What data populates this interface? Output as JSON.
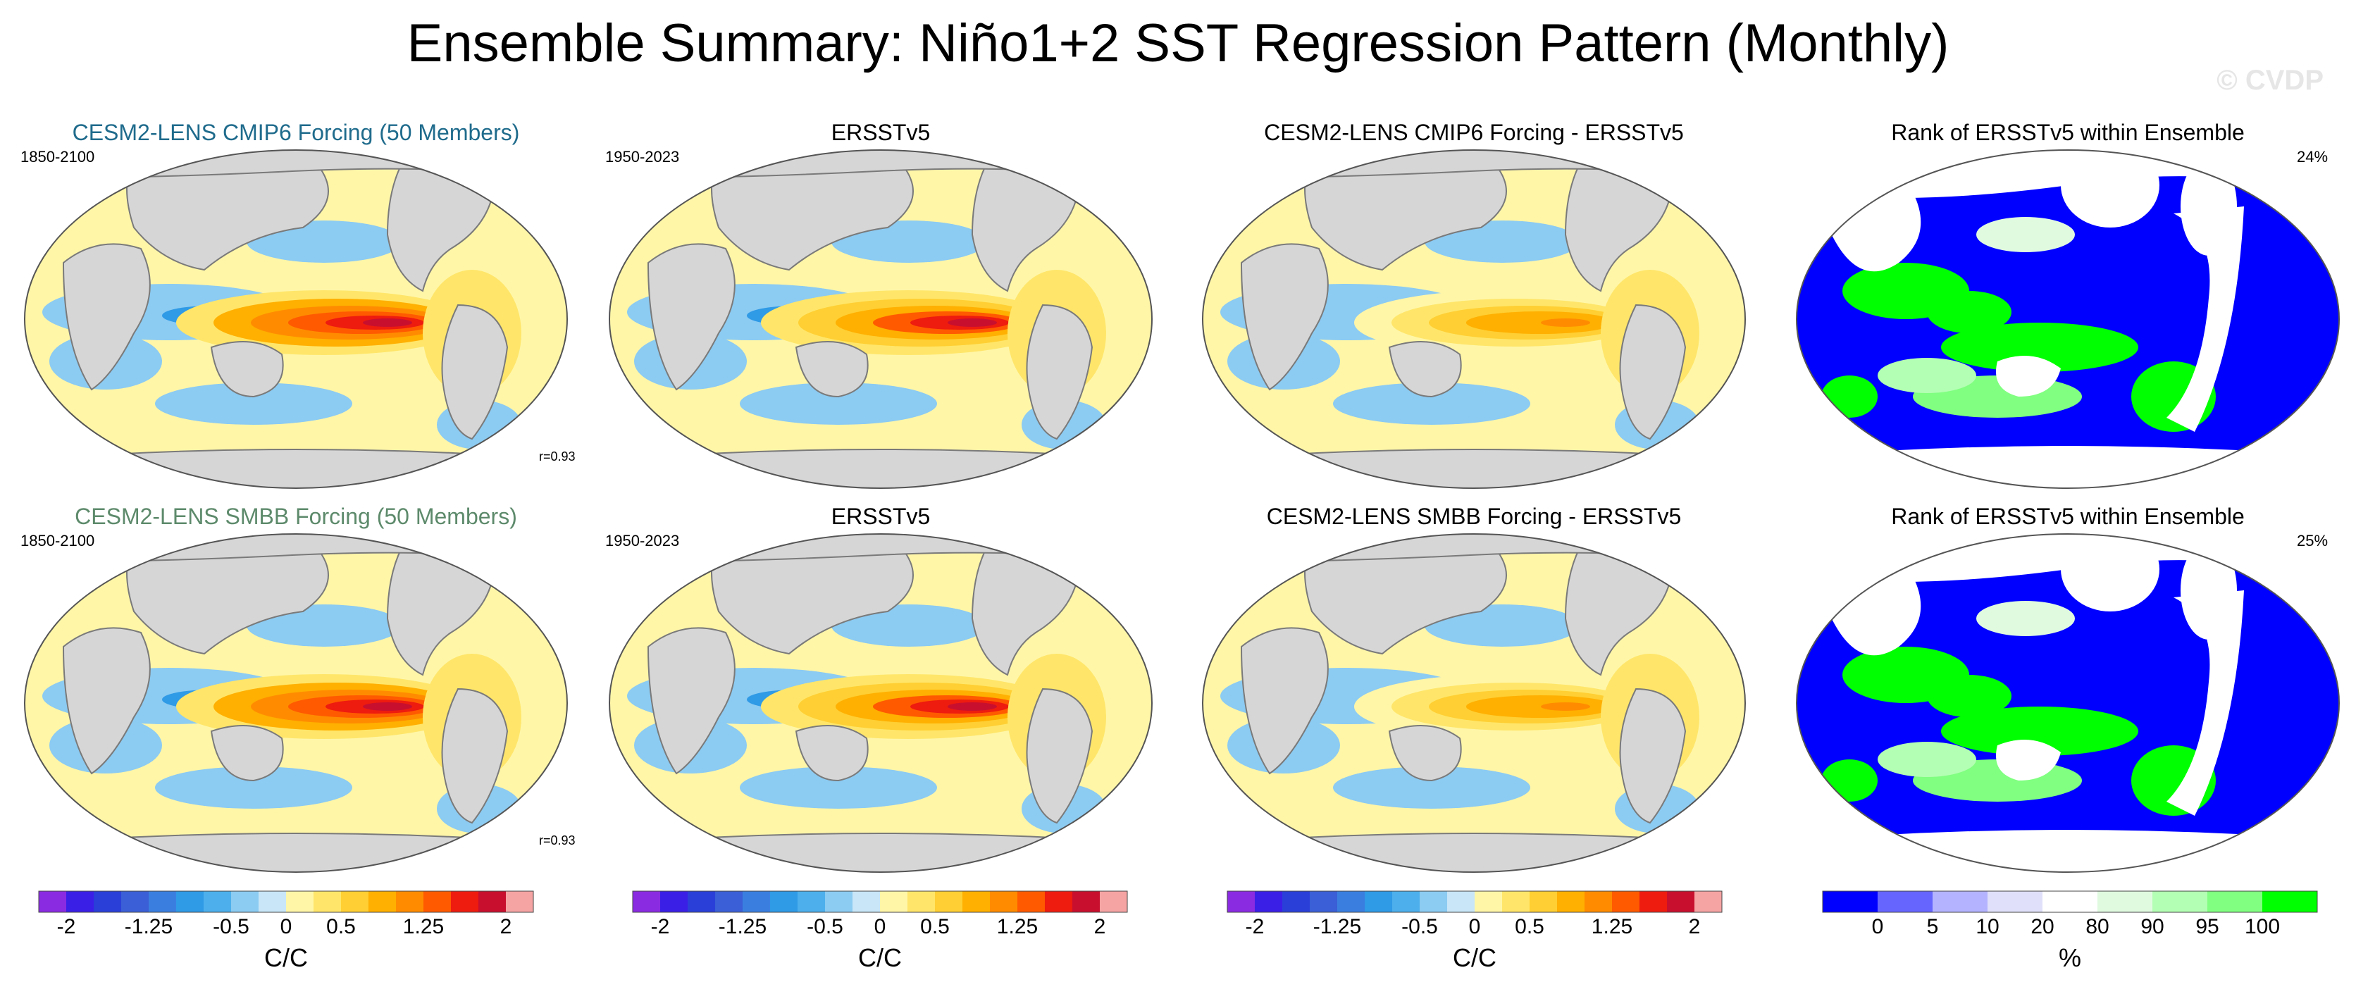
{
  "title": "Ensemble Summary: Niño1+2 SST Regression Pattern (Monthly)",
  "watermark": "© CVDP",
  "colors": {
    "title_cmip6": "#1f6b8c",
    "title_smbb": "#5d8a6b",
    "land": "#d6d6d6",
    "coast": "#7a7a7a"
  },
  "rows": [
    {
      "panels": [
        {
          "title": "CESM2-LENS CMIP6 Forcing (50 Members)",
          "left_label": "1850-2100",
          "right_label": "",
          "corner_stat": "r=0.93",
          "kind": "model"
        },
        {
          "title": "ERSSTv5",
          "left_label": "1950-2023",
          "right_label": "",
          "corner_stat": "",
          "kind": "obs"
        },
        {
          "title": "CESM2-LENS CMIP6 Forcing - ERSSTv5",
          "left_label": "",
          "right_label": "",
          "corner_stat": "",
          "kind": "diff"
        },
        {
          "title": "Rank of ERSSTv5 within Ensemble",
          "left_label": "",
          "right_label": "24%",
          "corner_stat": "",
          "kind": "rank"
        }
      ]
    },
    {
      "panels": [
        {
          "title": "CESM2-LENS SMBB Forcing (50 Members)",
          "left_label": "1850-2100",
          "right_label": "",
          "corner_stat": "r=0.93",
          "kind": "model"
        },
        {
          "title": "ERSSTv5",
          "left_label": "1950-2023",
          "right_label": "",
          "corner_stat": "",
          "kind": "obs"
        },
        {
          "title": "CESM2-LENS SMBB Forcing - ERSSTv5",
          "left_label": "",
          "right_label": "",
          "corner_stat": "",
          "kind": "diff"
        },
        {
          "title": "Rank of ERSSTv5 within Ensemble",
          "left_label": "",
          "right_label": "25%",
          "corner_stat": "",
          "kind": "rank"
        }
      ]
    }
  ],
  "chart_data": [
    {
      "type": "heatmap",
      "variable": "SST regression",
      "units": "C/C",
      "colorbar": {
        "levels": [
          -2,
          -1.75,
          -1.5,
          -1.25,
          -1,
          -0.75,
          -0.5,
          -0.25,
          0,
          0.25,
          0.5,
          0.75,
          1,
          1.25,
          1.5,
          1.75,
          2
        ],
        "tick_labels": [
          "-2",
          "-1.25",
          "-0.5",
          "0",
          "0.5",
          "1.25",
          "2"
        ],
        "tick_values": [
          -2,
          -1.25,
          -0.5,
          0,
          0.5,
          1.25,
          2
        ],
        "colors": [
          "#8a2be2",
          "#3a1fe6",
          "#2a3fd8",
          "#3a5fd6",
          "#3a7fe0",
          "#2f9ae6",
          "#4db0ec",
          "#8ccbf2",
          "#c8e6f7",
          "#fff6a8",
          "#ffe66a",
          "#ffcf33",
          "#ffb000",
          "#ff8c00",
          "#ff5a00",
          "#ee1b0f",
          "#c8102e",
          "#f6a3a3"
        ],
        "unit_label": "C/C"
      }
    },
    {
      "type": "heatmap",
      "variable": "Rank of ERSSTv5 within Ensemble",
      "units": "%",
      "colorbar": {
        "tick_labels": [
          "0",
          "5",
          "10",
          "20",
          "80",
          "90",
          "95",
          "100"
        ],
        "tick_values": [
          0,
          5,
          10,
          20,
          80,
          90,
          95,
          100
        ],
        "colors": [
          "#0000ff",
          "#6666ff",
          "#b3b3ff",
          "#e0e0fa",
          "#ffffff",
          "#e0fae0",
          "#b3ffb3",
          "#80ff80",
          "#00ff00"
        ],
        "unit_label": "%"
      }
    }
  ]
}
